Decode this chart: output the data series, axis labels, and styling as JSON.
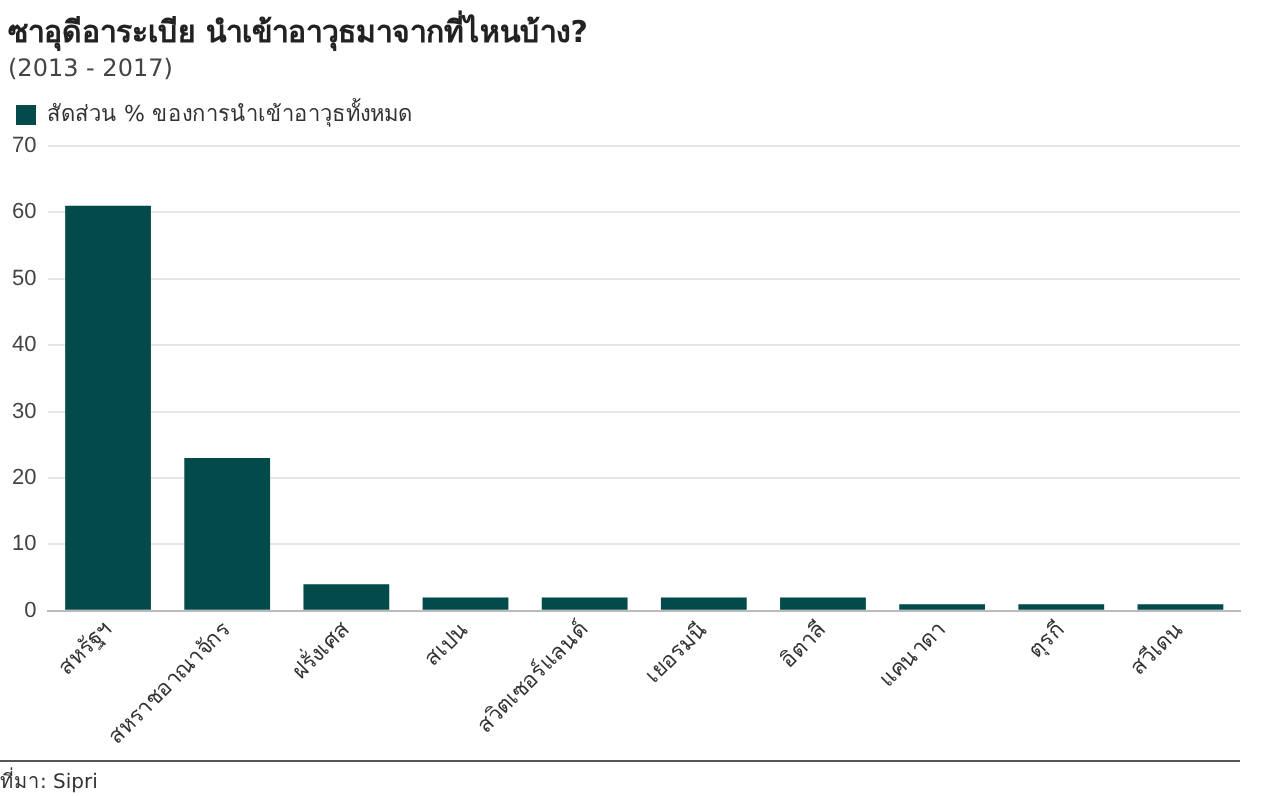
{
  "chart_data": {
    "type": "bar",
    "title": "ซาอุดีอาระเบีย นำเข้าอาวุธมาจากที่ไหนบ้าง?",
    "subtitle": "(2013 - 2017)",
    "categories": [
      "สหรัฐฯ",
      "สหราชอาณาจักร",
      "ฝรั่งเศส",
      "สเปน",
      "สวิตเซอร์แลนด์",
      "เยอรมนี",
      "อิตาลี",
      "แคนาดา",
      "ตุรกี",
      "สวีเดน"
    ],
    "series": [
      {
        "name": "สัดส่วน % ของการนำเข้าอาวุธทั้งหมด",
        "color": "#034a4a",
        "values": [
          61,
          23,
          4,
          2,
          2,
          2,
          2,
          1,
          1,
          1
        ]
      }
    ],
    "ylim": [
      0,
      70
    ],
    "yticks": [
      0,
      10,
      20,
      30,
      40,
      50,
      60,
      70
    ],
    "grid": "y",
    "legend": "top left",
    "annotations": [
      "ที่มา: Sipri"
    ]
  }
}
